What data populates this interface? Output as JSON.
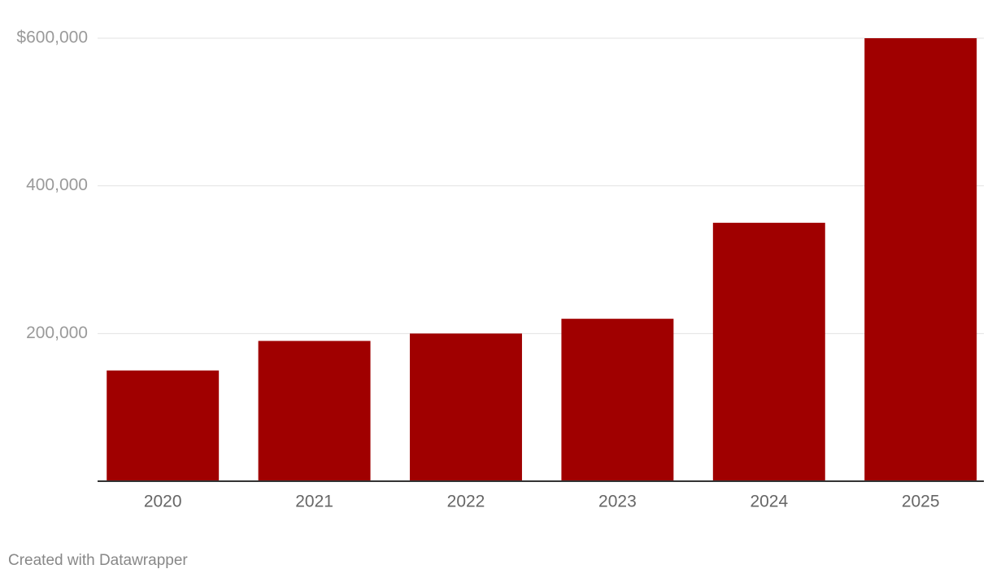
{
  "chart_data": {
    "type": "bar",
    "categories": [
      "2020",
      "2021",
      "2022",
      "2023",
      "2024",
      "2025"
    ],
    "values": [
      150000,
      190000,
      200000,
      220000,
      350000,
      600000
    ],
    "color": "#a00000",
    "ylim": [
      0,
      600000
    ],
    "yticks": [
      {
        "value": 200000,
        "label": "200,000"
      },
      {
        "value": 400000,
        "label": "400,000"
      },
      {
        "value": 600000,
        "label": "$600,000"
      }
    ],
    "grid": true,
    "credit": "Created with Datawrapper"
  }
}
